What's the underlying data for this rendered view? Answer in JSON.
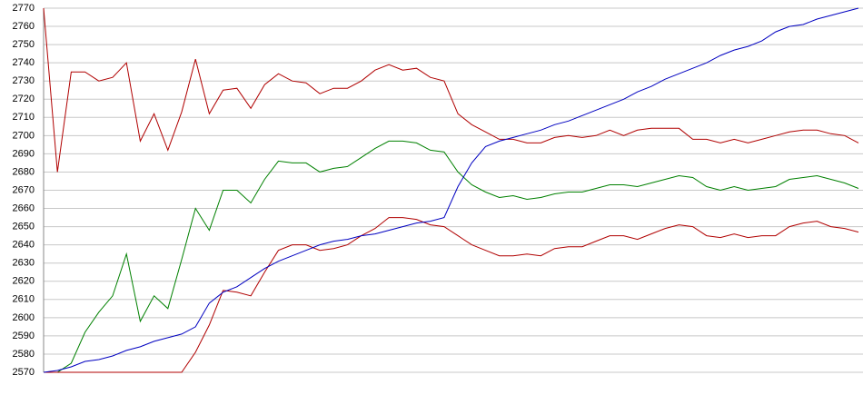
{
  "chart_data": {
    "type": "line",
    "categories": [
      null,
      null,
      null,
      null,
      null,
      null,
      null,
      null,
      null,
      null,
      null,
      null,
      null,
      null,
      null,
      null,
      null,
      null,
      null,
      null,
      null,
      null,
      null,
      null,
      null,
      null,
      null,
      null,
      null,
      null,
      null,
      null,
      null,
      null,
      null,
      null,
      null,
      null,
      null,
      null,
      null,
      null,
      null,
      null,
      null,
      null,
      null,
      null,
      null,
      null,
      null,
      null,
      null,
      null,
      null,
      null,
      null,
      null,
      null,
      null
    ],
    "series": [
      {
        "color": "#b00000",
        "values": [
          2770,
          2680,
          2735,
          2735,
          2730,
          2732,
          2740,
          2697,
          2712,
          2692,
          2713,
          2742,
          2712,
          2725,
          2726,
          2715,
          2728,
          2734,
          2730,
          2729,
          2723,
          2726,
          2726,
          2730,
          2736,
          2739,
          2736,
          2737,
          2732,
          2730,
          2712,
          2706,
          2702,
          2698,
          2698,
          2696,
          2696,
          2699,
          2700,
          2699,
          2700,
          2703,
          2700,
          2703,
          2704,
          2704,
          2704,
          2698,
          2698,
          2696,
          2698,
          2696,
          2698,
          2700,
          2702,
          2703,
          2703,
          2701,
          2700,
          2696
        ]
      },
      {
        "color": "#008000",
        "values": [
          2570,
          2570,
          2575,
          2592,
          2603,
          2612,
          2635,
          2598,
          2612,
          2605,
          2632,
          2660,
          2648,
          2670,
          2670,
          2663,
          2676,
          2686,
          2685,
          2685,
          2680,
          2682,
          2683,
          2688,
          2693,
          2697,
          2697,
          2696,
          2692,
          2691,
          2680,
          2673,
          2669,
          2666,
          2667,
          2665,
          2666,
          2668,
          2669,
          2669,
          2671,
          2673,
          2673,
          2672,
          2674,
          2676,
          2678,
          2677,
          2672,
          2670,
          2672,
          2670,
          2671,
          2672,
          2676,
          2677,
          2678,
          2676,
          2674,
          2671
        ]
      },
      {
        "color": "#b00000",
        "values": [
          2570,
          2570,
          2570,
          2570,
          2570,
          2570,
          2570,
          2570,
          2570,
          2570,
          2570,
          2581,
          2596,
          2615,
          2614,
          2612,
          2625,
          2637,
          2640,
          2640,
          2637,
          2638,
          2640,
          2645,
          2649,
          2655,
          2655,
          2654,
          2651,
          2650,
          2645,
          2640,
          2637,
          2634,
          2634,
          2635,
          2634,
          2638,
          2639,
          2639,
          2642,
          2645,
          2645,
          2643,
          2646,
          2649,
          2651,
          2650,
          2645,
          2644,
          2646,
          2644,
          2645,
          2645,
          2650,
          2652,
          2653,
          2650,
          2649,
          2647
        ]
      },
      {
        "color": "#0000c0",
        "values": [
          2570,
          2571,
          2573,
          2576,
          2577,
          2579,
          2582,
          2584,
          2587,
          2589,
          2591,
          2595,
          2608,
          2614,
          2617,
          2622,
          2627,
          2631,
          2634,
          2637,
          2640,
          2642,
          2643,
          2645,
          2646,
          2648,
          2650,
          2652,
          2653,
          2655,
          2672,
          2685,
          2694,
          2697,
          2699,
          2701,
          2703,
          2706,
          2708,
          2711,
          2714,
          2717,
          2720,
          2724,
          2727,
          2731,
          2734,
          2737,
          2740,
          2744,
          2747,
          2749,
          2752,
          2757,
          2760,
          2761,
          2764,
          2766,
          2768,
          2770
        ]
      }
    ],
    "ylim": [
      2570,
      2770
    ],
    "yticks": [
      2570,
      2580,
      2590,
      2600,
      2610,
      2620,
      2630,
      2640,
      2650,
      2660,
      2670,
      2680,
      2690,
      2700,
      2710,
      2720,
      2730,
      2740,
      2750,
      2760,
      2770
    ],
    "grid": true
  }
}
